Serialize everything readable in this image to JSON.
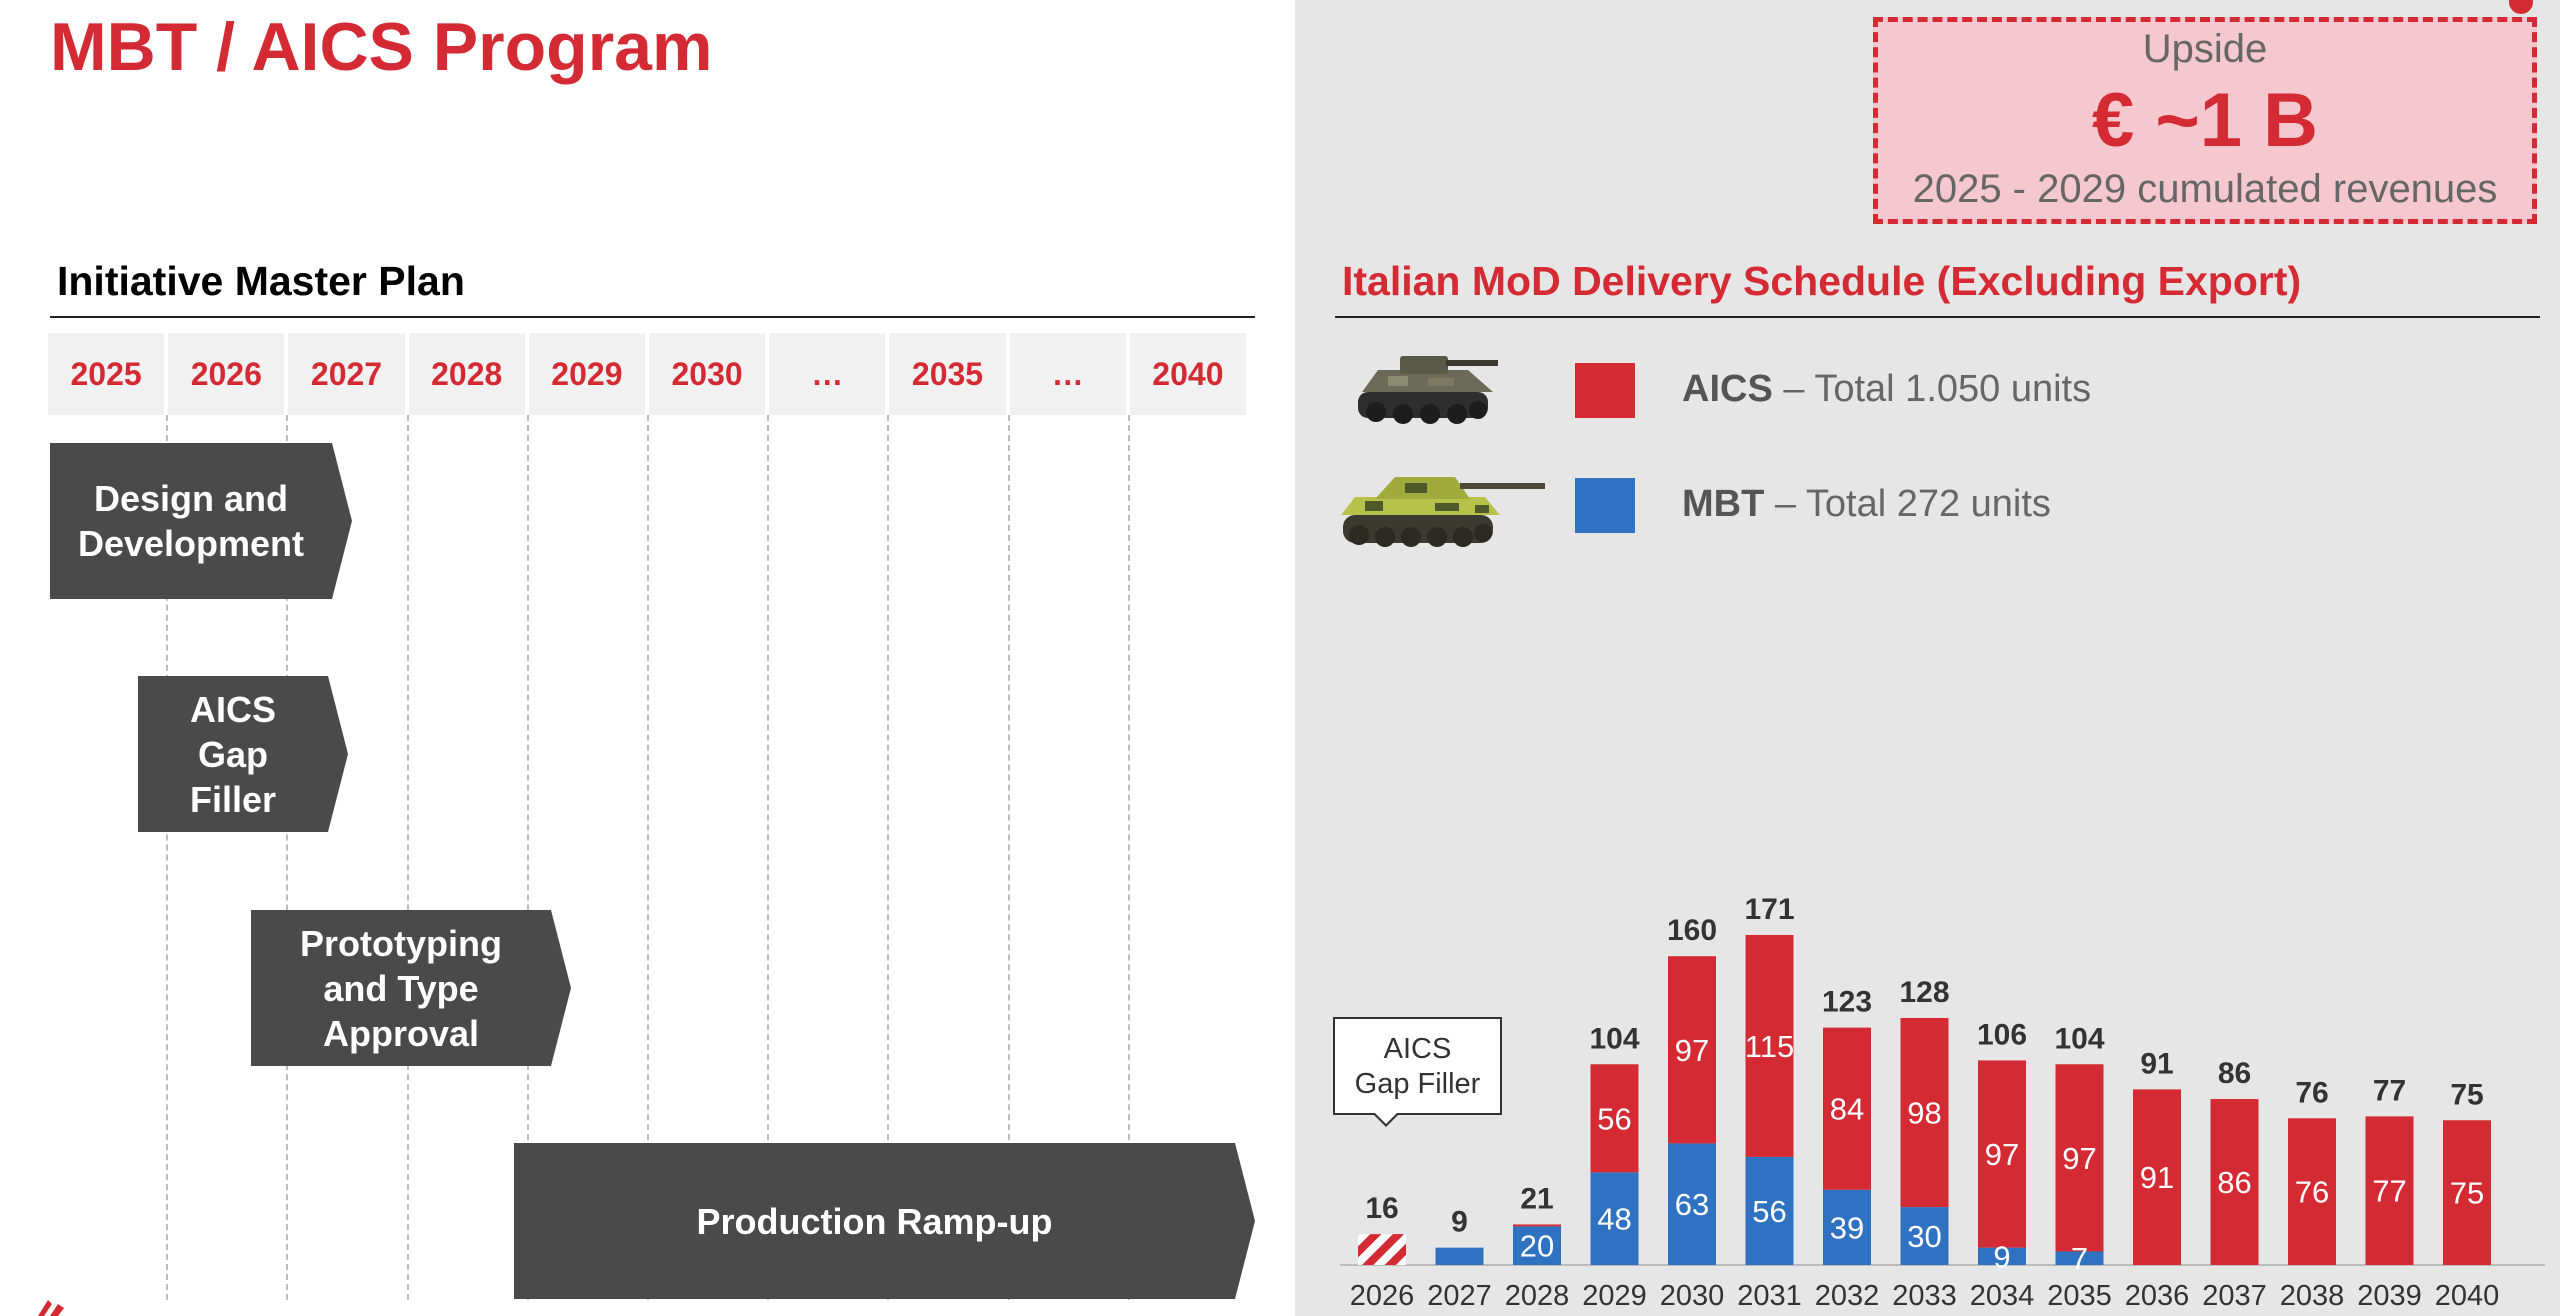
{
  "page": {
    "title": "MBT / AICS Program",
    "colors": {
      "accent": "#d42a33",
      "aics": "#d42a33",
      "mbt": "#2f72c2",
      "phase": "#4a4a4a"
    }
  },
  "master_plan": {
    "title": "Initiative Master Plan",
    "years": [
      "2025",
      "2026",
      "2027",
      "2028",
      "2029",
      "2030",
      "…",
      "2035",
      "…",
      "2040"
    ],
    "phases": [
      {
        "label": "Design and\nDevelopment",
        "start": "2025",
        "end": "2027"
      },
      {
        "label": "AICS\nGap\nFiller",
        "start": "2026",
        "end": "2027"
      },
      {
        "label": "Prototyping\nand Type\nApproval",
        "start": "2027",
        "end": "2029"
      },
      {
        "label": "Production Ramp-up",
        "start": "2029",
        "end": "2040"
      }
    ]
  },
  "upside": {
    "line1": "Upside",
    "line2": "€ ~1 B",
    "line3": "2025 - 2029  cumulated revenues"
  },
  "delivery": {
    "title": "Italian MoD Delivery Schedule (Excluding Export)",
    "legend": [
      {
        "key": "AICS",
        "rest": " – Total 1.050 units",
        "color": "#d42a33",
        "icon": "aics-vehicle-icon"
      },
      {
        "key": "MBT",
        "rest": " – Total 272 units",
        "color": "#2f72c2",
        "icon": "mbt-tank-icon"
      }
    ],
    "callout": "AICS\nGap Filler"
  },
  "chart_data": {
    "type": "bar",
    "stacked": true,
    "categories": [
      "2026",
      "2027",
      "2028",
      "2029",
      "2030",
      "2031",
      "2032",
      "2033",
      "2034",
      "2035",
      "2036",
      "2037",
      "2038",
      "2039",
      "2040"
    ],
    "series": [
      {
        "name": "MBT",
        "values": [
          0,
          9,
          20,
          48,
          63,
          56,
          39,
          30,
          9,
          7,
          0,
          0,
          0,
          0,
          0
        ]
      },
      {
        "name": "AICS",
        "values": [
          16,
          0,
          1,
          56,
          97,
          115,
          84,
          98,
          97,
          97,
          91,
          86,
          76,
          77,
          75
        ]
      }
    ],
    "totals": [
      16,
      9,
      21,
      104,
      160,
      171,
      123,
      128,
      106,
      104,
      91,
      86,
      76,
      77,
      75
    ],
    "segment_labels": {
      "MBT": [
        "",
        "",
        "20",
        "48",
        "63",
        "56",
        "39",
        "30",
        "9",
        "7",
        "",
        "",
        "",
        "",
        ""
      ],
      "AICS": [
        "",
        "",
        "",
        "56",
        "97",
        "115",
        "84",
        "98",
        "97",
        "97",
        "91",
        "86",
        "76",
        "77",
        "75"
      ]
    },
    "hatched": [
      "2026"
    ],
    "ylim": [
      0,
      171
    ],
    "grid": false,
    "legend_position": "top-left"
  }
}
